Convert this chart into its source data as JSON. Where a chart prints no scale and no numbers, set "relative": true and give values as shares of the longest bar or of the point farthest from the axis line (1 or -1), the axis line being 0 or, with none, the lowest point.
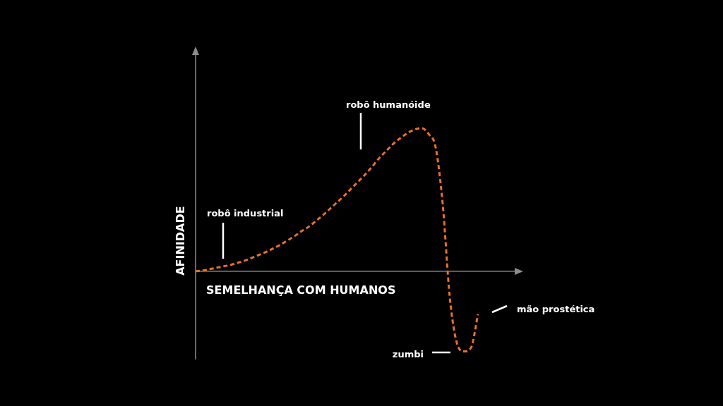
{
  "chart_data": {
    "type": "line",
    "relative": true,
    "xlabel": "SEMELHANÇA COM HUMANOS",
    "ylabel": "AFINIDADE",
    "categories": [
      null,
      null,
      null,
      null,
      null,
      null,
      null,
      null,
      null,
      null,
      null,
      null,
      null,
      null,
      null,
      null,
      null,
      null,
      null,
      null,
      null,
      null,
      null,
      null,
      null,
      null,
      null,
      null,
      null,
      null,
      null,
      null,
      null,
      null,
      null,
      null,
      null,
      null,
      null,
      null,
      null,
      null,
      null,
      null,
      null,
      null,
      null
    ],
    "values": [
      0,
      0.005,
      0.015,
      0.025,
      0.035,
      0.045,
      0.06,
      0.075,
      0.095,
      0.115,
      0.135,
      0.16,
      0.185,
      0.215,
      0.245,
      0.28,
      0.31,
      0.35,
      0.39,
      0.435,
      0.48,
      0.525,
      0.575,
      0.625,
      0.675,
      0.73,
      0.79,
      0.84,
      0.89,
      0.93,
      0.965,
      0.99,
      1,
      0.96,
      0.865,
      0.47,
      -0.18,
      -0.5,
      -0.56,
      -0.535,
      -0.3,
      null,
      null,
      null,
      null,
      null,
      null
    ],
    "color": "#e8702a",
    "line_style": "dashed",
    "marker": "none",
    "legend": false,
    "annotations": [
      "robô industrial",
      "robô humanóide",
      "zumbi",
      "mão prostética"
    ]
  }
}
